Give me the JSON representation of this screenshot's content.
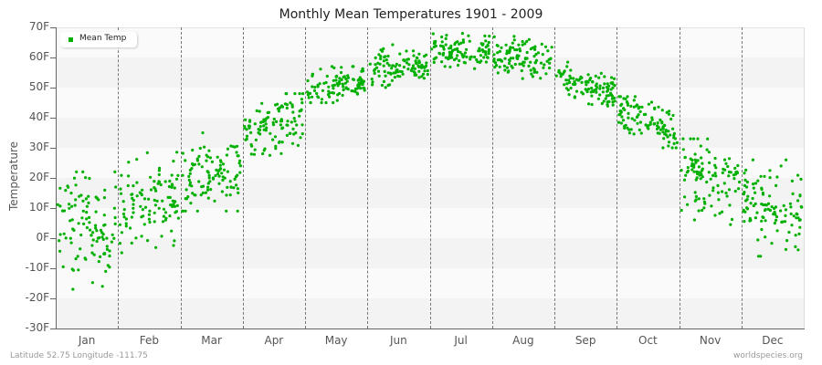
{
  "title": "Monthly Mean Temperatures 1901 - 2009",
  "legend": {
    "label": "Mean Temp",
    "color": "#00b000"
  },
  "footer": {
    "left": "Latitude 52.75 Longitude -111.75",
    "right": "worldspecies.org"
  },
  "chart_data": {
    "type": "scatter",
    "title": "Monthly Mean Temperatures 1901 - 2009",
    "xlabel": "",
    "ylabel": "Temperature",
    "ylim": [
      -30,
      70
    ],
    "yticks": [
      "70F",
      "60F",
      "50F",
      "40F",
      "30F",
      "20F",
      "10F",
      "0F",
      "-10F",
      "-20F",
      "-30F"
    ],
    "categories": [
      "Jan",
      "Feb",
      "Mar",
      "Apr",
      "May",
      "Jun",
      "Jul",
      "Aug",
      "Sep",
      "Oct",
      "Nov",
      "Dec"
    ],
    "grid": "alternating horizontal bands, dashed vertical month separators",
    "legend_position": "top-left",
    "series": [
      {
        "name": "Mean Temp",
        "color": "#00b000",
        "points_per_month": 109,
        "monthly_mean_approx": [
          4,
          12,
          21,
          38,
          50,
          57,
          62,
          60,
          51,
          39,
          20,
          10
        ],
        "monthly_spread_approx": [
          9,
          7,
          6,
          5,
          3,
          3,
          2.5,
          3,
          3,
          4,
          6,
          7
        ],
        "monthly_min_approx": [
          -21,
          -7,
          9,
          26,
          45,
          50,
          55,
          53,
          42,
          30,
          4,
          -6
        ],
        "monthly_max_approx": [
          22,
          29,
          35,
          48,
          57,
          66,
          68,
          67,
          61,
          47,
          33,
          26
        ]
      }
    ]
  }
}
